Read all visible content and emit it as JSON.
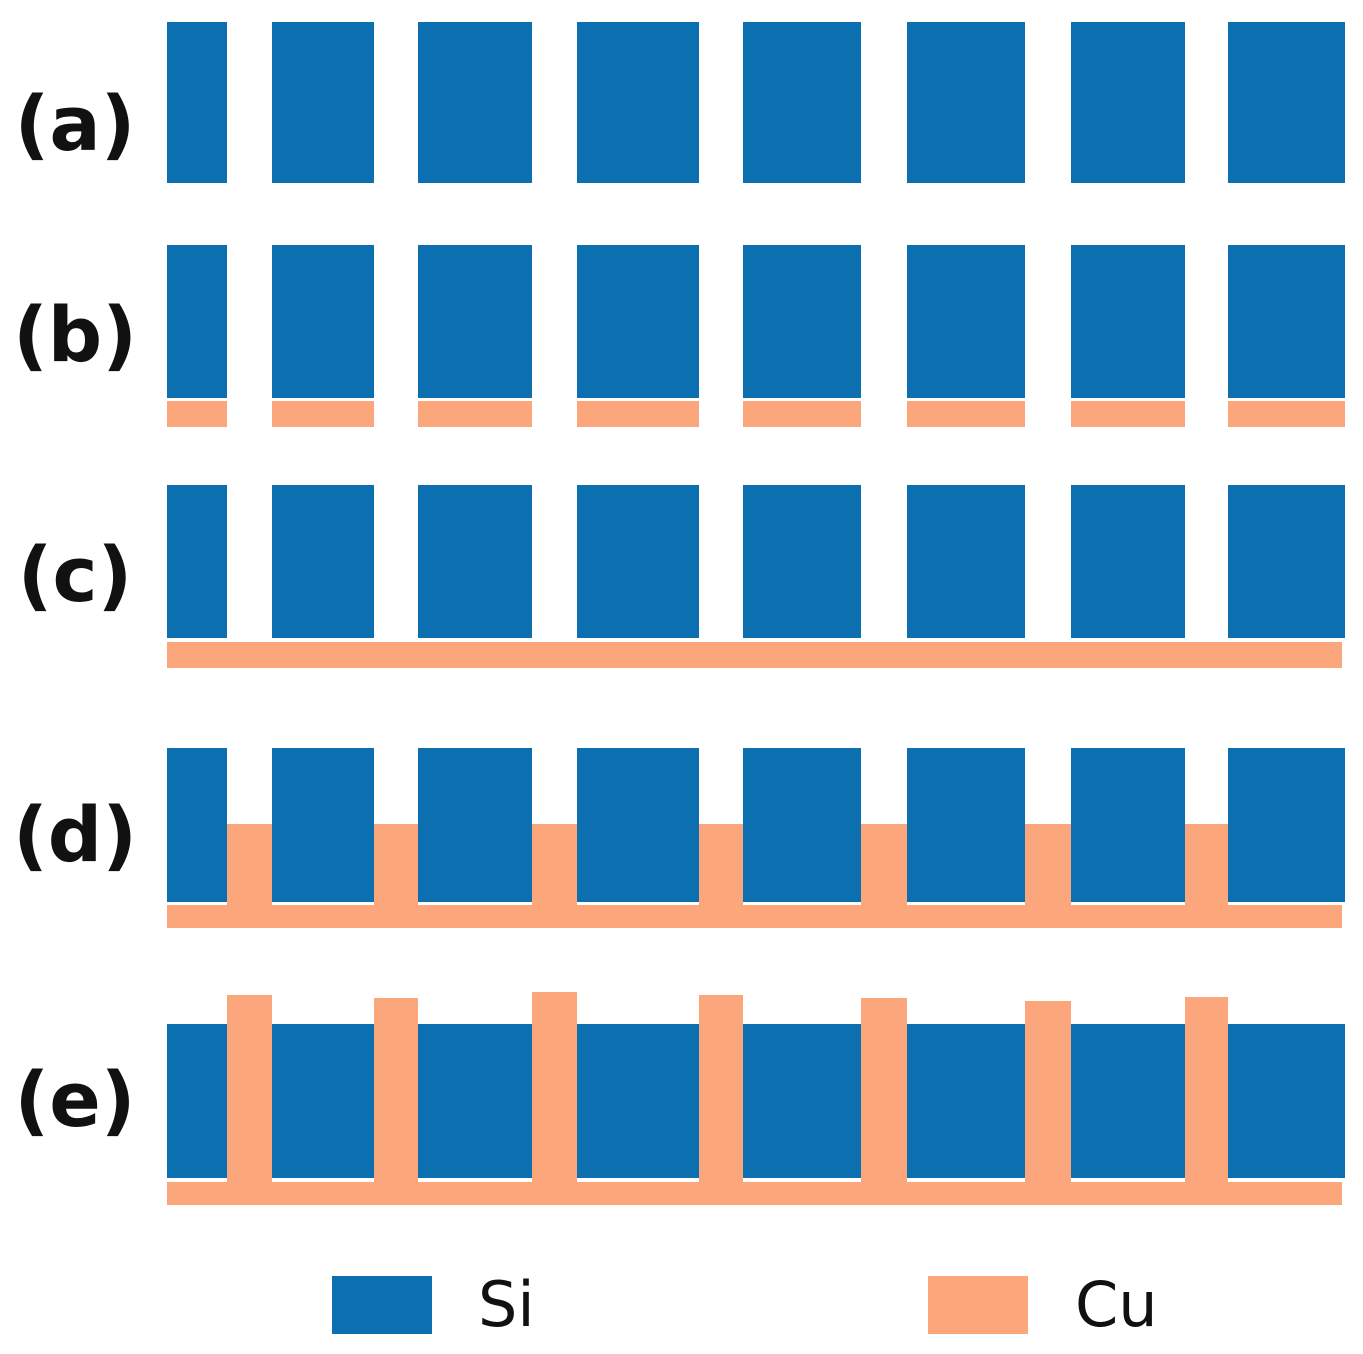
{
  "colors": {
    "si": "#0b6fb0",
    "cu": "#fba67b",
    "background": "#ffffff",
    "text": "#111111"
  },
  "steps": [
    {
      "label": "(a)"
    },
    {
      "label": "(b)"
    },
    {
      "label": "(c)"
    },
    {
      "label": "(d)"
    },
    {
      "label": "(e)"
    }
  ],
  "legend": {
    "items": [
      {
        "label": "Si",
        "color_key": "si"
      },
      {
        "label": "Cu",
        "color_key": "cu"
      }
    ]
  }
}
